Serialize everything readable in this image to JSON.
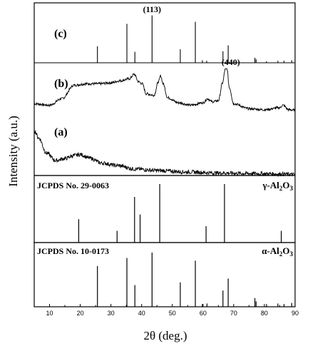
{
  "figure": {
    "ylabel": "Intensity (a.u.)",
    "xlabel": "2θ (deg.)"
  },
  "chart_data": [
    {
      "type": "line",
      "panel": "top",
      "grid": false,
      "xlim": [
        5,
        90
      ],
      "x_ticks": [
        10,
        20,
        30,
        40,
        50,
        60,
        70,
        80,
        90
      ],
      "traces": [
        {
          "label": "(c)",
          "kind": "stick",
          "peaks": [
            [
              25.6,
              0.33
            ],
            [
              35.2,
              0.78
            ],
            [
              37.8,
              0.22
            ],
            [
              43.4,
              0.95
            ],
            [
              52.6,
              0.27
            ],
            [
              57.5,
              0.82
            ],
            [
              59.8,
              0.05
            ],
            [
              61.2,
              0.04
            ],
            [
              66.5,
              0.23
            ],
            [
              68.2,
              0.35
            ],
            [
              76.9,
              0.1
            ],
            [
              77.3,
              0.07
            ],
            [
              80.7,
              0.03
            ],
            [
              84.4,
              0.04
            ],
            [
              86.4,
              0.04
            ],
            [
              88.9,
              0.05
            ]
          ],
          "annotation": "(113)",
          "annotation_x": 43.4
        },
        {
          "label": "(b)",
          "kind": "profile",
          "profile": [
            [
              5,
              0.18
            ],
            [
              10,
              0.15
            ],
            [
              14,
              0.28
            ],
            [
              18,
              0.55
            ],
            [
              22,
              0.58
            ],
            [
              26,
              0.58
            ],
            [
              30,
              0.6
            ],
            [
              33,
              0.64
            ],
            [
              36,
              0.68
            ],
            [
              37.6,
              0.77
            ],
            [
              39,
              0.62
            ],
            [
              40.2,
              0.58
            ],
            [
              41.5,
              0.38
            ],
            [
              44,
              0.35
            ],
            [
              45.5,
              0.62
            ],
            [
              46.2,
              0.74
            ],
            [
              47,
              0.58
            ],
            [
              48.5,
              0.3
            ],
            [
              52,
              0.2
            ],
            [
              56,
              0.15
            ],
            [
              60,
              0.2
            ],
            [
              61.5,
              0.28
            ],
            [
              63,
              0.22
            ],
            [
              65,
              0.24
            ],
            [
              66.4,
              0.6
            ],
            [
              67.2,
              0.86
            ],
            [
              67.8,
              0.88
            ],
            [
              68.6,
              0.5
            ],
            [
              70,
              0.18
            ],
            [
              75,
              0.08
            ],
            [
              80,
              0.06
            ],
            [
              85,
              0.1
            ],
            [
              86,
              0.15
            ],
            [
              88,
              0.06
            ],
            [
              90,
              0.05
            ]
          ],
          "annotation": "(440)",
          "annotation_x": 67.2
        },
        {
          "label": "(a)",
          "kind": "profile",
          "profile": [
            [
              5,
              0.9
            ],
            [
              6.5,
              0.75
            ],
            [
              9,
              0.45
            ],
            [
              12,
              0.3
            ],
            [
              15,
              0.34
            ],
            [
              18,
              0.4
            ],
            [
              20,
              0.42
            ],
            [
              23,
              0.35
            ],
            [
              27,
              0.25
            ],
            [
              32,
              0.2
            ],
            [
              38,
              0.13
            ],
            [
              45,
              0.1
            ],
            [
              55,
              0.07
            ],
            [
              65,
              0.05
            ],
            [
              75,
              0.04
            ],
            [
              85,
              0.03
            ],
            [
              90,
              0.02
            ]
          ]
        }
      ]
    },
    {
      "type": "bar",
      "panel": "reference",
      "card": "JCPDS No. 29-0063",
      "phase": "γ-Al2O3",
      "phase_symbol": "γ",
      "phase_base": "-Al",
      "phase_sub1": "2",
      "phase_mid": "O",
      "phase_sub2": "3",
      "xlim": [
        5,
        90
      ],
      "x": [
        19.5,
        32.0,
        37.7,
        39.5,
        45.9,
        61.0,
        67.0,
        85.5
      ],
      "values": [
        0.4,
        0.2,
        0.78,
        0.48,
        1.0,
        0.28,
        1.0,
        0.2
      ]
    },
    {
      "type": "bar",
      "panel": "reference",
      "card": "JCPDS No. 10-0173",
      "phase": "α-Al2O3",
      "phase_symbol": "α",
      "phase_base": "-Al",
      "phase_sub1": "2",
      "phase_mid": "O",
      "phase_sub2": "3",
      "xlim": [
        5,
        90
      ],
      "x": [
        25.6,
        35.2,
        37.8,
        43.4,
        52.6,
        57.5,
        59.8,
        61.3,
        66.5,
        68.2,
        76.9,
        77.3,
        80.7,
        84.4,
        86.4,
        88.9
      ],
      "values": [
        0.75,
        0.9,
        0.4,
        1.0,
        0.45,
        0.85,
        0.05,
        0.06,
        0.3,
        0.52,
        0.16,
        0.1,
        0.05,
        0.06,
        0.05,
        0.07
      ]
    }
  ]
}
